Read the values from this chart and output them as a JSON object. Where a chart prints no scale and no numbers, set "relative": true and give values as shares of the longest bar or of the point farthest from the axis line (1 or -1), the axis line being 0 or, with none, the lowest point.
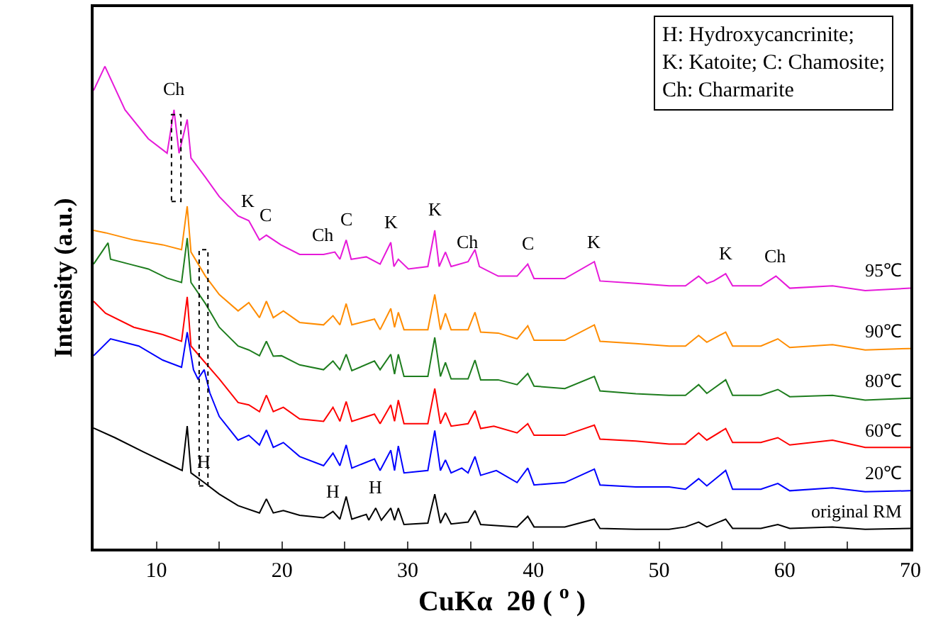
{
  "chart_data": {
    "type": "line",
    "relative": true,
    "xlabel": "CuKα  2θ ( $^{o}$ )",
    "ylabel": "Intensity (a.u.)",
    "xlim": [
      5,
      70
    ],
    "xticks": [
      10,
      {
        "value": 15,
        "label": null
      },
      20,
      {
        "value": 25,
        "label": null
      },
      30,
      {
        "value": 35,
        "label": null
      },
      40,
      {
        "value": 45,
        "label": null
      },
      50,
      {
        "value": 55,
        "label": null
      },
      60,
      {
        "value": 65,
        "label": null
      },
      70
    ],
    "legend": false,
    "marker": "none",
    "line_style": "solid",
    "series": [
      {
        "name": "95℃",
        "color": "#e619d9",
        "x": [
          5.0,
          5.9,
          7.5,
          9.35,
          10.85,
          11.4,
          11.8,
          12.45,
          12.75,
          13.9,
          15.0,
          16.5,
          17.35,
          18.2,
          18.75,
          19.9,
          21.4,
          23.3,
          24.2,
          24.6,
          25.1,
          25.5,
          26.7,
          27.8,
          28.65,
          28.9,
          29.25,
          30.05,
          31.6,
          32.15,
          32.5,
          33.0,
          33.45,
          34.8,
          35.35,
          35.7,
          37.2,
          38.7,
          39.55,
          40.05,
          42.5,
          44.85,
          45.3,
          48.15,
          50.8,
          52.1,
          53.15,
          53.8,
          54.35,
          55.3,
          55.85,
          58.1,
          59.3,
          60.4,
          63.8,
          66.4,
          70
        ],
        "values": [
          0.95,
          1.0,
          0.91,
          0.85,
          0.82,
          0.91,
          0.82,
          0.89,
          0.81,
          0.77,
          0.73,
          0.69,
          0.68,
          0.64,
          0.65,
          0.63,
          0.61,
          0.61,
          0.615,
          0.6,
          0.64,
          0.6,
          0.605,
          0.59,
          0.635,
          0.585,
          0.6,
          0.58,
          0.585,
          0.66,
          0.585,
          0.615,
          0.585,
          0.595,
          0.62,
          0.585,
          0.565,
          0.565,
          0.59,
          0.56,
          0.56,
          0.595,
          0.555,
          0.55,
          0.545,
          0.545,
          0.565,
          0.55,
          0.555,
          0.57,
          0.545,
          0.545,
          0.565,
          0.54,
          0.545,
          0.535,
          0.54
        ]
      },
      {
        "name": "90℃",
        "color": "#ff8c00",
        "x": [
          5.0,
          5.95,
          8.2,
          10.5,
          12.0,
          12.45,
          12.75,
          13.9,
          15.0,
          16.5,
          17.35,
          18.2,
          18.75,
          19.3,
          20.1,
          21.4,
          23.3,
          24.05,
          24.6,
          25.1,
          25.55,
          27.35,
          27.8,
          28.65,
          28.95,
          29.25,
          29.7,
          31.6,
          32.15,
          32.6,
          33.0,
          33.45,
          34.8,
          35.35,
          35.8,
          37.2,
          38.7,
          39.55,
          40.05,
          42.5,
          44.85,
          45.3,
          48.15,
          50.8,
          52.1,
          53.15,
          53.8,
          55.3,
          55.85,
          58.1,
          59.45,
          60.4,
          63.8,
          66.4,
          70
        ],
        "values": [
          0.66,
          0.655,
          0.64,
          0.63,
          0.62,
          0.71,
          0.615,
          0.565,
          0.527,
          0.493,
          0.51,
          0.479,
          0.513,
          0.479,
          0.493,
          0.469,
          0.464,
          0.483,
          0.464,
          0.508,
          0.464,
          0.476,
          0.454,
          0.498,
          0.459,
          0.49,
          0.454,
          0.454,
          0.527,
          0.454,
          0.488,
          0.454,
          0.454,
          0.49,
          0.449,
          0.447,
          0.435,
          0.462,
          0.432,
          0.432,
          0.464,
          0.43,
          0.425,
          0.42,
          0.42,
          0.442,
          0.428,
          0.449,
          0.42,
          0.42,
          0.435,
          0.417,
          0.423,
          0.412,
          0.415
        ]
      },
      {
        "name": "80℃",
        "color": "#1e7d1e",
        "x": [
          5.0,
          6.15,
          6.35,
          7.85,
          9.35,
          10.85,
          12.0,
          12.45,
          12.75,
          13.9,
          15.0,
          16.5,
          17.35,
          18.2,
          18.75,
          19.3,
          19.95,
          21.4,
          23.3,
          24.05,
          24.6,
          25.1,
          25.55,
          27.35,
          27.8,
          28.65,
          28.95,
          29.25,
          29.7,
          31.6,
          32.15,
          32.6,
          33.0,
          33.45,
          34.8,
          35.35,
          35.8,
          37.2,
          38.7,
          39.55,
          40.05,
          42.5,
          44.85,
          45.3,
          48.15,
          50.8,
          52.1,
          53.15,
          53.8,
          55.3,
          55.85,
          58.1,
          59.45,
          60.4,
          63.8,
          66.4,
          70
        ],
        "values": [
          0.59,
          0.634,
          0.6,
          0.59,
          0.58,
          0.561,
          0.552,
          0.644,
          0.552,
          0.508,
          0.459,
          0.42,
          0.412,
          0.4,
          0.43,
          0.399,
          0.4,
          0.381,
          0.371,
          0.389,
          0.371,
          0.403,
          0.369,
          0.389,
          0.371,
          0.403,
          0.362,
          0.403,
          0.357,
          0.357,
          0.438,
          0.357,
          0.386,
          0.352,
          0.352,
          0.391,
          0.35,
          0.35,
          0.34,
          0.363,
          0.337,
          0.332,
          0.357,
          0.327,
          0.321,
          0.318,
          0.318,
          0.34,
          0.322,
          0.35,
          0.318,
          0.318,
          0.33,
          0.315,
          0.318,
          0.308,
          0.312
        ]
      },
      {
        "name": "60℃",
        "color": "#ff0000",
        "x": [
          5.0,
          5.95,
          8.2,
          10.5,
          12.0,
          12.45,
          12.75,
          13.7,
          15.0,
          16.5,
          17.35,
          18.2,
          18.75,
          19.3,
          20.1,
          21.4,
          23.3,
          24.05,
          24.6,
          25.1,
          25.55,
          27.35,
          27.8,
          28.65,
          28.95,
          29.25,
          29.7,
          31.6,
          32.15,
          32.6,
          33.0,
          33.45,
          34.8,
          35.35,
          35.8,
          36.85,
          38.7,
          39.55,
          40.05,
          42.5,
          44.85,
          45.3,
          48.15,
          50.8,
          52.1,
          53.15,
          53.8,
          55.3,
          55.85,
          58.1,
          59.45,
          60.4,
          63.8,
          66.4,
          70
        ],
        "values": [
          0.513,
          0.488,
          0.459,
          0.444,
          0.43,
          0.522,
          0.42,
          0.391,
          0.352,
          0.303,
          0.298,
          0.284,
          0.318,
          0.284,
          0.293,
          0.269,
          0.264,
          0.293,
          0.264,
          0.305,
          0.264,
          0.279,
          0.259,
          0.298,
          0.264,
          0.308,
          0.259,
          0.259,
          0.332,
          0.259,
          0.282,
          0.254,
          0.259,
          0.286,
          0.249,
          0.254,
          0.24,
          0.259,
          0.235,
          0.235,
          0.256,
          0.227,
          0.223,
          0.217,
          0.217,
          0.24,
          0.225,
          0.249,
          0.22,
          0.22,
          0.23,
          0.215,
          0.225,
          0.21,
          0.21
        ]
      },
      {
        "name": "20℃",
        "color": "#0000ff",
        "x": [
          5.0,
          6.35,
          8.6,
          10.5,
          12.0,
          12.45,
          12.95,
          13.3,
          13.8,
          14.25,
          15.0,
          16.5,
          17.35,
          18.2,
          18.75,
          19.3,
          20.1,
          21.4,
          23.3,
          24.05,
          24.6,
          25.1,
          25.55,
          27.35,
          27.8,
          28.65,
          28.95,
          29.25,
          29.7,
          31.6,
          32.15,
          32.6,
          33.0,
          33.45,
          34.3,
          34.8,
          35.35,
          35.8,
          37.05,
          38.7,
          39.55,
          40.05,
          42.5,
          44.85,
          45.3,
          48.15,
          50.8,
          52.1,
          53.15,
          53.8,
          55.3,
          55.85,
          58.1,
          59.45,
          60.4,
          63.8,
          66.4,
          70
        ],
        "values": [
          0.4,
          0.435,
          0.42,
          0.391,
          0.376,
          0.449,
          0.371,
          0.352,
          0.371,
          0.323,
          0.274,
          0.225,
          0.235,
          0.215,
          0.246,
          0.21,
          0.22,
          0.191,
          0.172,
          0.198,
          0.172,
          0.215,
          0.167,
          0.186,
          0.162,
          0.204,
          0.162,
          0.213,
          0.157,
          0.162,
          0.245,
          0.162,
          0.184,
          0.157,
          0.167,
          0.157,
          0.191,
          0.152,
          0.162,
          0.137,
          0.167,
          0.132,
          0.137,
          0.165,
          0.132,
          0.128,
          0.128,
          0.123,
          0.145,
          0.13,
          0.162,
          0.123,
          0.123,
          0.135,
          0.12,
          0.126,
          0.118,
          0.12
        ]
      },
      {
        "name": "original RM",
        "color": "#000000",
        "x": [
          5.0,
          6.7,
          9.0,
          11.25,
          12.05,
          12.45,
          12.75,
          13.7,
          15.0,
          16.5,
          18.2,
          18.75,
          19.3,
          20.1,
          21.4,
          23.3,
          24.05,
          24.6,
          25.1,
          25.55,
          26.7,
          26.9,
          27.45,
          27.9,
          28.65,
          28.95,
          29.25,
          29.7,
          31.6,
          32.15,
          32.6,
          33.0,
          33.45,
          34.8,
          35.35,
          35.8,
          38.7,
          39.55,
          40.05,
          42.5,
          44.85,
          45.3,
          48.15,
          50.8,
          52.1,
          53.15,
          53.8,
          55.3,
          55.85,
          58.1,
          59.45,
          60.4,
          63.8,
          66.4,
          70
        ],
        "values": [
          0.25,
          0.23,
          0.2,
          0.172,
          0.162,
          0.254,
          0.157,
          0.139,
          0.113,
          0.089,
          0.074,
          0.103,
          0.074,
          0.079,
          0.069,
          0.064,
          0.077,
          0.061,
          0.108,
          0.061,
          0.071,
          0.059,
          0.084,
          0.059,
          0.084,
          0.059,
          0.084,
          0.05,
          0.053,
          0.113,
          0.053,
          0.074,
          0.051,
          0.055,
          0.079,
          0.05,
          0.045,
          0.067,
          0.045,
          0.045,
          0.061,
          0.042,
          0.04,
          0.04,
          0.045,
          0.055,
          0.045,
          0.061,
          0.042,
          0.042,
          0.05,
          0.042,
          0.045,
          0.04,
          0.042
        ]
      }
    ],
    "annotations": [
      {
        "text": "H: Hydroxycancrinite;\nK: Katoite; C: Chamosite;\nCh: Charmarite"
      },
      {
        "text": "Ch",
        "x": 11.4,
        "y": 0.91
      },
      {
        "text": "K",
        "x": 17.35,
        "y": 0.68
      },
      {
        "text": "C",
        "x": 18.75,
        "y": 0.65
      },
      {
        "text": "Ch",
        "x": 23.3,
        "y": 0.61
      },
      {
        "text": "C",
        "x": 25.1,
        "y": 0.64
      },
      {
        "text": "K",
        "x": 28.65,
        "y": 0.635
      },
      {
        "text": "K",
        "x": 32.15,
        "y": 0.66
      },
      {
        "text": "Ch",
        "x": 34.8,
        "y": 0.595
      },
      {
        "text": "C",
        "x": 39.55,
        "y": 0.59
      },
      {
        "text": "K",
        "x": 44.85,
        "y": 0.595
      },
      {
        "text": "K",
        "x": 55.3,
        "y": 0.57
      },
      {
        "text": "Ch",
        "x": 59.3,
        "y": 0.565
      },
      {
        "text": "H",
        "x": 13.7,
        "y": 0.139
      },
      {
        "text": "H",
        "x": 24.05,
        "y": 0.077
      },
      {
        "text": "H",
        "x": 27.45,
        "y": 0.084
      }
    ]
  }
}
